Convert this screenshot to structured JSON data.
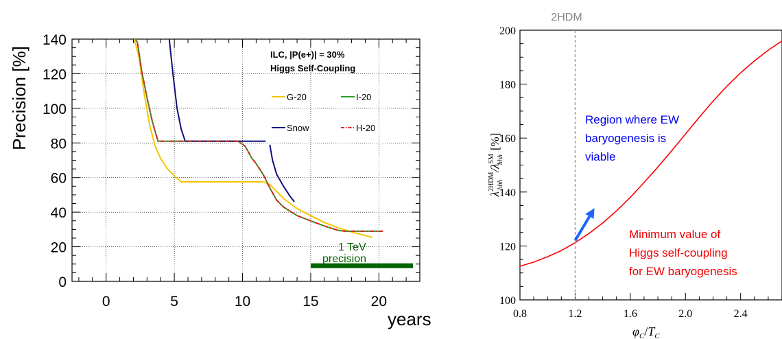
{
  "chart_data": [
    {
      "type": "line",
      "ylabel": "Precision [%]",
      "xlabel": "years",
      "xlim": [
        -2.5,
        23
      ],
      "ylim": [
        0,
        140
      ],
      "xticks": [
        0,
        5,
        10,
        15,
        20
      ],
      "yticks": [
        0,
        20,
        40,
        60,
        80,
        100,
        120,
        140
      ],
      "grid": true,
      "legend": {
        "placement": "top-right",
        "header_line1": "ILC, |P(e+)| = 30%",
        "header_line2": "Higgs Self-Coupling"
      },
      "series": [
        {
          "name": "G-20",
          "color": "#f5c400",
          "dash": "solid",
          "x": [
            2.0,
            2.4,
            2.8,
            3.2,
            3.6,
            4.0,
            4.5,
            5.0,
            5.5,
            7.0,
            9.0,
            11.5,
            12.0,
            12.5,
            13.0,
            14.0,
            15.0,
            16.0,
            17.0,
            18.0,
            19.5
          ],
          "y": [
            142,
            130,
            108,
            90,
            78,
            71,
            65,
            61,
            57.5,
            57.5,
            57.5,
            57.5,
            56,
            52,
            48,
            42,
            38,
            34,
            31,
            28.5,
            25.5
          ]
        },
        {
          "name": "I-20",
          "color": "#2a9d2a",
          "dash": "solid",
          "x": [
            2.0,
            2.3,
            2.6,
            3.0,
            3.4,
            3.8,
            4.5,
            6.0,
            8.0,
            9.7,
            10.2,
            10.7,
            11.0,
            11.5,
            12.0,
            12.5,
            13.0,
            14.0,
            15.0,
            16.0,
            17.0,
            17.5,
            18.0,
            19.0,
            20.3
          ],
          "y": [
            142,
            138,
            122,
            106,
            92,
            81,
            81,
            81,
            81,
            81,
            78,
            71,
            68,
            62,
            54,
            47,
            43,
            38,
            35,
            32,
            29.5,
            29,
            29,
            29,
            29
          ]
        },
        {
          "name": "Snow",
          "color": "#10107a",
          "dash": "solid",
          "segments": [
            {
              "x": [
                4.6,
                4.9,
                5.2,
                5.5,
                5.8,
                6.5,
                8.0,
                10.0,
                11.7
              ],
              "y": [
                142,
                120,
                100,
                88,
                81,
                81,
                81,
                81,
                81
              ]
            },
            {
              "x": [
                12.0,
                12.2,
                12.5,
                13.0,
                13.5,
                13.8
              ],
              "y": [
                79,
                70,
                62,
                55,
                49,
                46
              ]
            }
          ]
        },
        {
          "name": "H-20",
          "color": "#e02020",
          "dash": "dash-dot",
          "x": [
            2.0,
            2.3,
            2.6,
            3.0,
            3.4,
            3.8,
            4.5,
            6.0,
            8.0,
            9.7,
            10.2,
            10.7,
            11.0,
            11.5,
            12.0,
            12.5,
            13.0,
            14.0,
            15.0,
            16.0,
            17.0,
            17.5,
            18.0,
            19.0,
            20.3
          ],
          "y": [
            142,
            138,
            122,
            106,
            92,
            81,
            81,
            81,
            81,
            81,
            78,
            71,
            68,
            62,
            54,
            47,
            43,
            38,
            35,
            32,
            29.5,
            29,
            29,
            29,
            29
          ]
        }
      ],
      "annotations": [
        {
          "text_line1": "1 TeV",
          "text_line2": "precision",
          "color": "#006400",
          "bar_x": [
            15.0,
            23.0
          ],
          "bar_y": 9
        }
      ]
    },
    {
      "type": "line",
      "title": "2HDM",
      "ylabel_main": "λ",
      "ylabel_sup1": "2HDM",
      "ylabel_sub1": "hhh",
      "ylabel_sep": "/",
      "ylabel_main2": "λ",
      "ylabel_sup2": "SM",
      "ylabel_sub2": "hhh",
      "ylabel_unit": "[%]",
      "xlabel_main": "φ",
      "xlabel_sub1": "C",
      "xlabel_sep": "/",
      "xlabel_main2": "T",
      "xlabel_sub2": "C",
      "xlim": [
        0.8,
        2.7
      ],
      "ylim": [
        100,
        200
      ],
      "xticks": [
        0.8,
        1.2,
        1.6,
        2.0,
        2.4
      ],
      "yticks": [
        100,
        120,
        140,
        160,
        180,
        200
      ],
      "series": [
        {
          "color": "#ff0000",
          "x": [
            0.8,
            0.9,
            1.0,
            1.1,
            1.2,
            1.3,
            1.4,
            1.5,
            1.6,
            1.7,
            1.8,
            1.9,
            2.0,
            2.1,
            2.2,
            2.3,
            2.4,
            2.5,
            2.6,
            2.7
          ],
          "y": [
            112.5,
            114.0,
            116.0,
            118.3,
            121.2,
            124.6,
            128.5,
            133.0,
            138.0,
            143.5,
            149.3,
            155.3,
            161.5,
            167.7,
            173.7,
            179.2,
            184.2,
            188.6,
            192.6,
            196.0
          ]
        }
      ],
      "vline": {
        "x": 1.2,
        "color": "#888888",
        "dash": "dashed"
      },
      "arrow": {
        "from": [
          1.2,
          122
        ],
        "to": [
          1.34,
          134
        ],
        "color": "#1a66ff"
      },
      "annotations": [
        {
          "lines": [
            "Region where EW",
            "baryogenesis is",
            "viable"
          ],
          "color": "#0000ee",
          "anchor": [
            1.26,
            163.5
          ]
        },
        {
          "lines": [
            "Minimum value of",
            "Higgs self-coupling",
            "for EW baryogenesis"
          ],
          "color": "#ee0000",
          "anchor": [
            1.87,
            130.5
          ]
        }
      ]
    }
  ]
}
